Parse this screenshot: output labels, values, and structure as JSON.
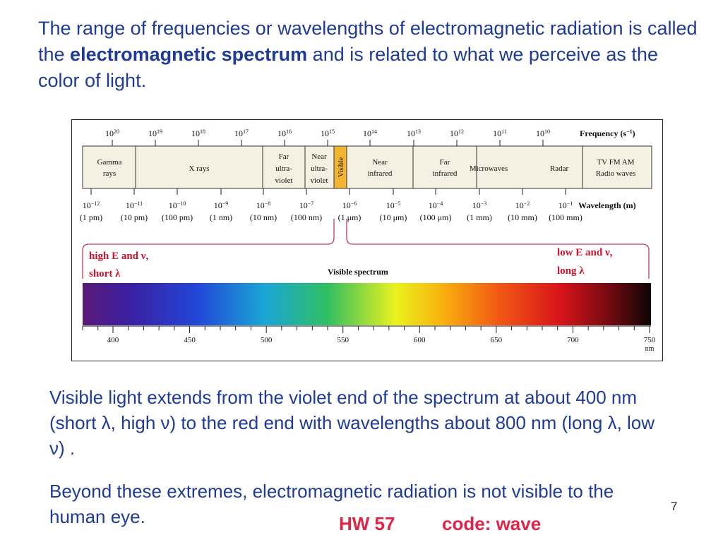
{
  "intro": {
    "part1": "The range of frequencies or wavelengths of electromagnetic radiation is called the ",
    "bold": "electromagnetic spectrum",
    "part2": " and is related to what we perceive as the color of light."
  },
  "figure": {
    "frequency_label": "Frequency (s",
    "frequency_label_exp": "−1",
    "frequency_label_end": ")",
    "frequency_exponents": [
      "20",
      "19",
      "18",
      "17",
      "16",
      "15",
      "14",
      "13",
      "12",
      "11",
      "10"
    ],
    "bands": [
      {
        "lines": [
          "Gamma",
          "rays"
        ]
      },
      {
        "lines": [
          "X rays"
        ]
      },
      {
        "lines": [
          "Far",
          "ultra-",
          "violet"
        ]
      },
      {
        "lines": [
          "Near",
          "ultra-",
          "violet"
        ]
      },
      {
        "lines": [
          "Visible"
        ]
      },
      {
        "lines": [
          "Near",
          "infrared"
        ]
      },
      {
        "lines": [
          "Far",
          "infrared"
        ]
      },
      {
        "lines": [
          "Microwaves",
          "Radar"
        ]
      },
      {
        "lines": [
          "TV FM AM",
          "Radio waves"
        ]
      }
    ],
    "wavelength_label": "Wavelength (m)",
    "wavelength_exponents": [
      "−12",
      "−11",
      "−10",
      "−9",
      "−8",
      "−7",
      "−6",
      "−5",
      "−4",
      "−3",
      "−2",
      "−1"
    ],
    "wavelength_units": [
      "(1 pm)",
      "(10 pm)",
      "(100 pm)",
      "(1 nm)",
      "(10 nm)",
      "(100 nm)",
      "(1 μm)",
      "(10 μm)",
      "(100 μm)",
      "(1 mm)",
      "(10 mm)",
      "(100 mm)"
    ],
    "high_label_1": "high E and ν,",
    "high_label_2": "short λ",
    "low_label_1": "low E and ν,",
    "low_label_2": "long λ",
    "visible_title": "Visible spectrum",
    "nm_ticks": [
      "400",
      "450",
      "500",
      "550",
      "600",
      "650",
      "700",
      "750"
    ],
    "nm_unit": "nm"
  },
  "body": {
    "p1": "Visible light extends from the violet end of the spectrum at about 400 nm (short λ, high ν) to the red end with wavelengths about 800 nm (long λ, low ν) .",
    "p2": "Beyond these extremes, electromagnetic radiation is not visible to the human eye."
  },
  "hw": {
    "number": "HW 57",
    "code": "code: wave"
  },
  "page_number": "7",
  "colors": {
    "text_blue": "#1f3b96",
    "accent_red": "#e0244a",
    "bracket": "#c8385e",
    "visible_band": "#f3b431"
  }
}
